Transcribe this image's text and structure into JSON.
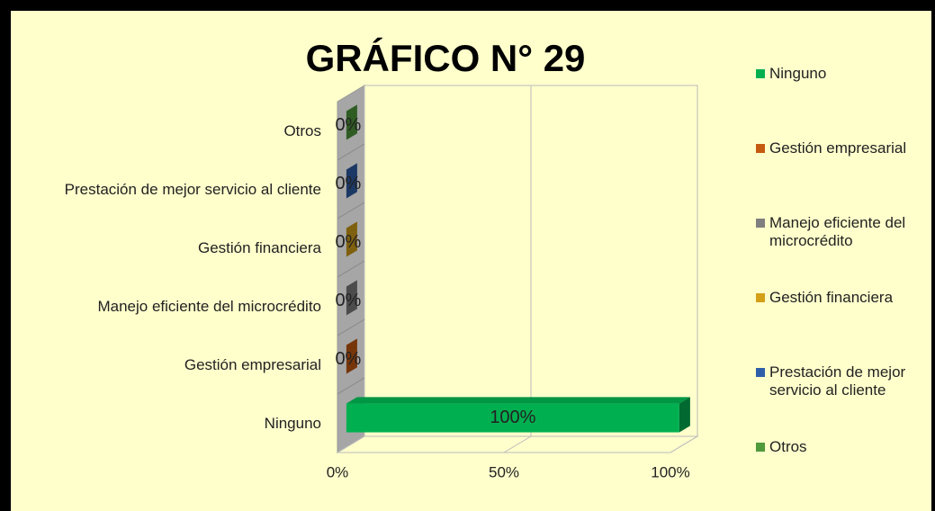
{
  "chart_data": {
    "type": "bar",
    "orientation": "horizontal",
    "title": "GRÁFICO N° 29",
    "categories": [
      "Ninguno",
      "Gestión empresarial",
      "Manejo eficiente del microcrédito",
      "Gestión financiera",
      "Prestación de mejor servicio al cliente",
      "Otros"
    ],
    "values": [
      100,
      0,
      0,
      0,
      0,
      0
    ],
    "value_labels": [
      "100%",
      "0%",
      "0%",
      "0%",
      "0%",
      "0%"
    ],
    "colors": [
      "#00b050",
      "#c55a11",
      "#7f7f7f",
      "#d4a017",
      "#2e5fa8",
      "#4f9a3a"
    ],
    "xlim": [
      0,
      100
    ],
    "xticks": [
      {
        "value": 0,
        "label": "0%"
      },
      {
        "value": 50,
        "label": "50%"
      },
      {
        "value": 100,
        "label": "100%"
      }
    ],
    "grid": true,
    "legend": "right"
  }
}
